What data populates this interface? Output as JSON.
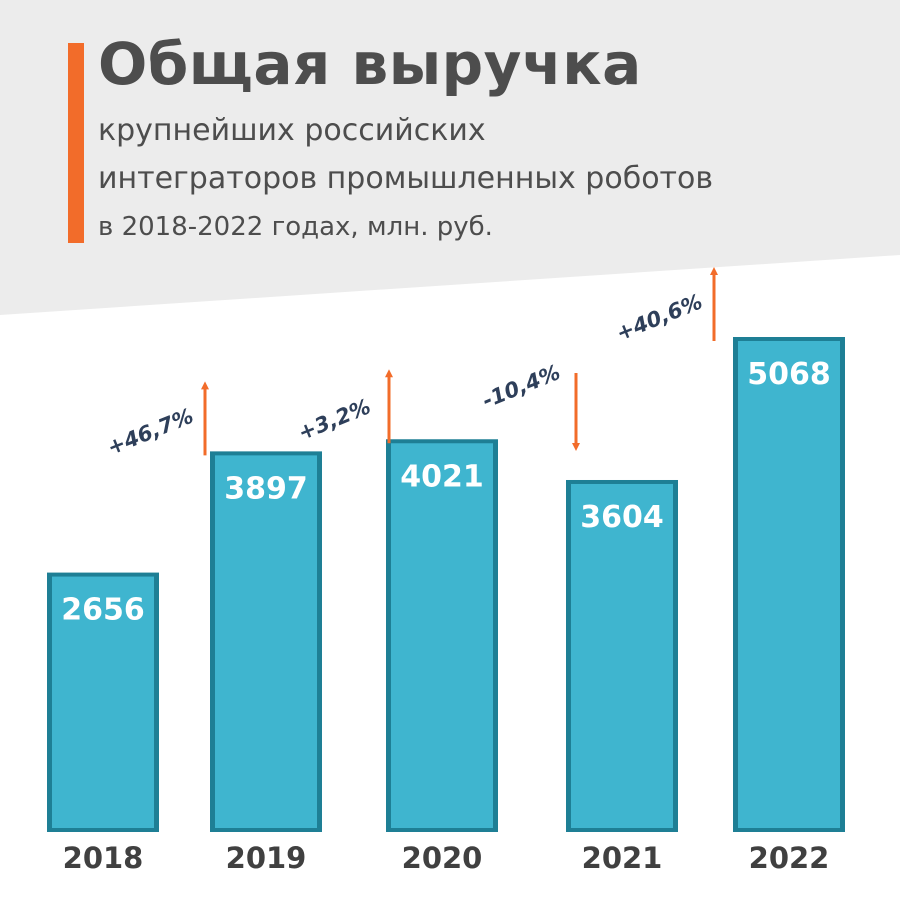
{
  "header": {
    "title": "Общая выручка",
    "subtitle_line1": "крупнейших российских",
    "subtitle_line2": "интеграторов промышленных роботов",
    "subtitle_line3": "в 2018-2022 годах, млн. руб."
  },
  "colors": {
    "accent": "#f26c2a",
    "bar": "#3fb5cf",
    "bar_edge": "#1e7f95",
    "band": "#ececec",
    "arrow": "#f26c2a",
    "text_dark": "#4d4d4d"
  },
  "chart_data": {
    "type": "bar",
    "categories": [
      "2018",
      "2019",
      "2020",
      "2021",
      "2022"
    ],
    "values": [
      2656,
      3897,
      4021,
      3604,
      5068
    ],
    "value_labels": [
      "2656",
      "3897",
      "4021",
      "3604",
      "5068"
    ],
    "changes": [
      {
        "text": "+46,7%",
        "direction": "up"
      },
      {
        "text": "+3,2%",
        "direction": "up"
      },
      {
        "text": "-10,4%",
        "direction": "down"
      },
      {
        "text": "+40,6%",
        "direction": "up"
      }
    ],
    "title": "Общая выручка",
    "xlabel": "",
    "ylabel": "",
    "grid": false,
    "legend": "none"
  }
}
